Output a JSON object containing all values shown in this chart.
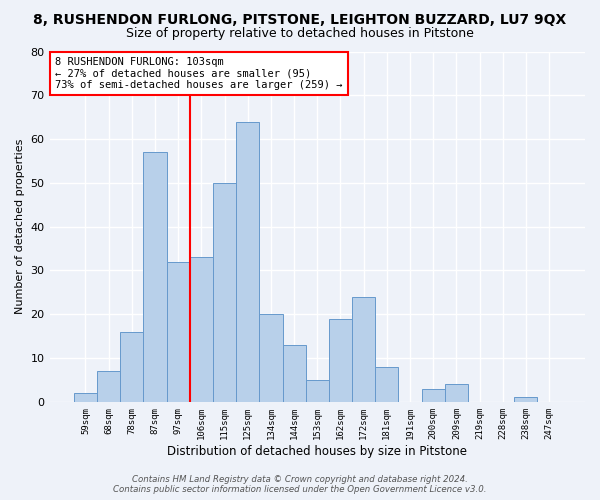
{
  "title": "8, RUSHENDON FURLONG, PITSTONE, LEIGHTON BUZZARD, LU7 9QX",
  "subtitle": "Size of property relative to detached houses in Pitstone",
  "xlabel": "Distribution of detached houses by size in Pitstone",
  "ylabel": "Number of detached properties",
  "bar_labels": [
    "59sqm",
    "68sqm",
    "78sqm",
    "87sqm",
    "97sqm",
    "106sqm",
    "115sqm",
    "125sqm",
    "134sqm",
    "144sqm",
    "153sqm",
    "162sqm",
    "172sqm",
    "181sqm",
    "191sqm",
    "200sqm",
    "209sqm",
    "219sqm",
    "228sqm",
    "238sqm",
    "247sqm"
  ],
  "bar_values": [
    2,
    7,
    16,
    57,
    32,
    33,
    50,
    64,
    20,
    13,
    5,
    19,
    24,
    8,
    0,
    3,
    4,
    0,
    0,
    1,
    0
  ],
  "bar_color": "#b8d0ea",
  "bar_edge_color": "#6699cc",
  "vline_x": 4.5,
  "vline_color": "red",
  "ylim": [
    0,
    80
  ],
  "yticks": [
    0,
    10,
    20,
    30,
    40,
    50,
    60,
    70,
    80
  ],
  "annotation_lines": [
    "8 RUSHENDON FURLONG: 103sqm",
    "← 27% of detached houses are smaller (95)",
    "73% of semi-detached houses are larger (259) →"
  ],
  "footer1": "Contains HM Land Registry data © Crown copyright and database right 2024.",
  "footer2": "Contains public sector information licensed under the Open Government Licence v3.0.",
  "background_color": "#eef2f9",
  "grid_color": "#ffffff",
  "title_fontsize": 10,
  "subtitle_fontsize": 9
}
